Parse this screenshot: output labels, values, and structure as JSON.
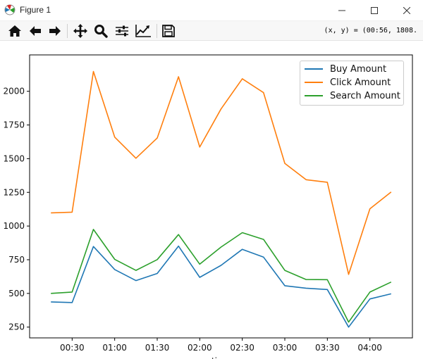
{
  "window": {
    "title": "Figure 1",
    "controls": [
      "minimize",
      "maximize",
      "close"
    ]
  },
  "toolbar": {
    "buttons": [
      {
        "name": "home",
        "icon": "home-icon"
      },
      {
        "name": "back",
        "icon": "arrow-left-icon"
      },
      {
        "name": "forward",
        "icon": "arrow-right-icon"
      },
      {
        "name": "pan",
        "icon": "move-icon"
      },
      {
        "name": "zoom",
        "icon": "magnifier-icon"
      },
      {
        "name": "subplots",
        "icon": "sliders-icon"
      },
      {
        "name": "edit-axis",
        "icon": "chart-line-icon"
      },
      {
        "name": "save",
        "icon": "floppy-icon"
      }
    ],
    "coords_text": "(x, y) = (00:56, 1808."
  },
  "colors": {
    "buy": "#1f77b4",
    "click": "#ff7f0e",
    "search": "#2ca02c"
  },
  "chart_data": {
    "type": "line",
    "title": "",
    "xlabel": "time",
    "ylabel": "",
    "x": [
      "00:15",
      "00:30",
      "00:45",
      "01:00",
      "01:15",
      "01:30",
      "01:45",
      "02:00",
      "02:15",
      "02:30",
      "02:45",
      "03:00",
      "03:15",
      "03:30",
      "03:45",
      "04:00",
      "04:15"
    ],
    "xticks": [
      "00:30",
      "01:00",
      "01:30",
      "02:00",
      "02:30",
      "03:00",
      "03:30",
      "04:00"
    ],
    "yticks": [
      250,
      500,
      750,
      1000,
      1250,
      1500,
      1750,
      2000
    ],
    "ylim": [
      170,
      2270
    ],
    "xlim_minutes": [
      0,
      270
    ],
    "grid": false,
    "legend_position": "top-right",
    "series": [
      {
        "name": "Buy Amount",
        "color": "#1f77b4",
        "values": [
          437,
          432,
          848,
          677,
          595,
          648,
          851,
          619,
          708,
          827,
          769,
          557,
          539,
          529,
          250,
          459,
          497
        ]
      },
      {
        "name": "Click Amount",
        "color": "#ff7f0e",
        "values": [
          1098,
          1103,
          2147,
          1660,
          1503,
          1653,
          2108,
          1586,
          1869,
          2093,
          1990,
          1465,
          1344,
          1325,
          641,
          1128,
          1253
        ]
      },
      {
        "name": "Search Amount",
        "color": "#2ca02c",
        "values": [
          500,
          510,
          975,
          753,
          671,
          751,
          937,
          717,
          844,
          951,
          901,
          671,
          603,
          602,
          287,
          510,
          584
        ]
      }
    ]
  }
}
